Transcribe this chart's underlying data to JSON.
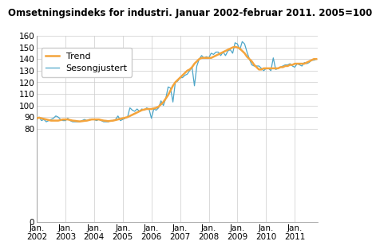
{
  "title": "Omsetningsindeks for industri. Januar 2002-februar 2011. 2005=100",
  "trend_color": "#F4A43C",
  "seasonal_color": "#4DA6C8",
  "trend_linewidth": 1.8,
  "seasonal_linewidth": 0.9,
  "ylim": [
    0,
    160
  ],
  "yticks": [
    0,
    80,
    90,
    100,
    110,
    120,
    130,
    140,
    150,
    160
  ],
  "background_color": "#ffffff",
  "grid_color": "#cccccc",
  "title_fontsize": 8.5,
  "tick_fontsize": 7.5,
  "legend_fontsize": 8,
  "xtick_labels": [
    "Jan.\n2002",
    "Jan.\n2003",
    "Jan.\n2004",
    "Jan.\n2005",
    "Jan.\n2006",
    "Jan.\n2007",
    "Jan.\n2008",
    "Jan.\n2009",
    "Jan.\n2010",
    "Jan.\n2011"
  ],
  "trend": [
    89,
    89.5,
    89,
    88.5,
    88,
    87.5,
    87,
    87,
    87,
    87,
    87.5,
    88,
    88,
    88,
    87.5,
    87,
    86.8,
    86.5,
    86.3,
    86.5,
    86.8,
    87,
    87.5,
    88,
    88,
    88,
    88,
    87.5,
    87,
    86.8,
    86.5,
    86.8,
    87,
    87.5,
    88,
    88.5,
    89,
    89.5,
    90,
    91,
    92,
    93,
    94,
    95,
    96,
    96.5,
    97,
    97,
    97,
    97.5,
    98,
    99,
    101,
    103,
    106,
    109,
    113,
    117,
    120,
    122,
    124,
    126,
    128,
    130,
    131,
    133,
    136,
    138,
    140,
    141,
    141,
    141,
    141,
    141,
    142,
    143,
    144,
    145,
    146,
    147,
    148,
    149,
    150,
    150.5,
    150,
    149,
    147,
    145,
    142,
    140,
    138,
    135,
    133,
    131,
    131,
    132,
    132,
    132,
    132,
    132,
    132,
    132,
    133,
    133,
    134,
    134,
    135,
    135,
    136,
    136,
    136,
    136,
    136,
    137,
    138,
    139,
    140,
    140
  ],
  "seasonal": [
    88,
    90,
    87,
    88,
    86,
    87,
    88,
    89,
    91,
    90,
    88,
    87,
    87,
    89,
    87,
    86,
    86,
    86,
    86,
    87,
    88,
    87,
    88,
    88,
    88,
    87,
    88,
    87,
    86,
    86,
    86,
    87,
    87,
    88,
    91,
    87,
    88,
    89,
    90,
    98,
    96,
    95,
    97,
    95,
    97,
    96,
    98,
    97,
    89,
    97,
    96,
    98,
    104,
    100,
    106,
    116,
    115,
    103,
    120,
    121,
    124,
    124,
    126,
    127,
    130,
    133,
    117,
    134,
    140,
    143,
    141,
    142,
    141,
    145,
    144,
    146,
    146,
    143,
    146,
    143,
    147,
    148,
    145,
    154,
    153,
    148,
    155,
    153,
    146,
    140,
    135,
    134,
    134,
    134,
    132,
    130,
    132,
    132,
    130,
    141,
    131,
    132,
    133,
    134,
    135,
    135,
    136,
    134,
    133,
    136,
    135,
    134,
    137,
    136,
    137,
    139,
    139,
    140
  ]
}
